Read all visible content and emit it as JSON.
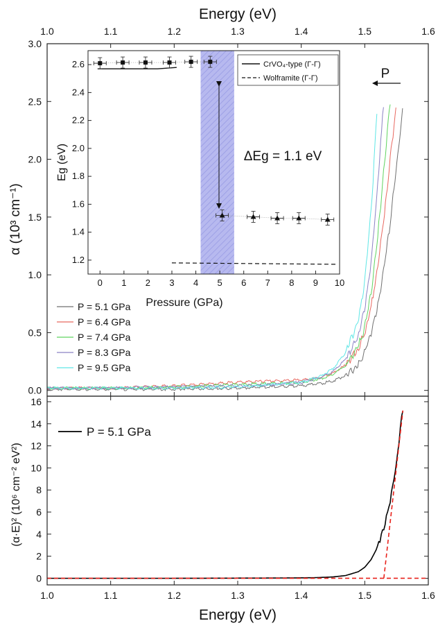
{
  "chart_data": [
    {
      "type": "line",
      "top_axis_title": "Energy (eV)",
      "xlim": [
        1.0,
        1.6
      ],
      "ylim": [
        -0.05,
        3.0
      ],
      "x_ticks": [
        1.0,
        1.1,
        1.2,
        1.3,
        1.4,
        1.5,
        1.6
      ],
      "y_ticks": [
        0.0,
        0.5,
        1.0,
        1.5,
        2.0,
        2.5,
        3.0
      ],
      "x_tick_labels": [
        "1.0",
        "1.1",
        "1.2",
        "1.3",
        "1.4",
        "1.5",
        "1.6"
      ],
      "y_tick_labels": [
        "0.0",
        "0.5",
        "1.0",
        "1.5",
        "2.0",
        "2.5",
        "3.0"
      ],
      "ylabel": "α (10³ cm⁻¹)",
      "legend_position": "bottom-left",
      "annotation_arrow_label": "P",
      "series": [
        {
          "name": "P = 5.1 GPa",
          "color": "#6f6f6f",
          "x": [
            1.0,
            1.1,
            1.2,
            1.3,
            1.35,
            1.4,
            1.43,
            1.45,
            1.47,
            1.49,
            1.5,
            1.51,
            1.52,
            1.53,
            1.54,
            1.55,
            1.56
          ],
          "y": [
            0.01,
            0.01,
            0.01,
            0.02,
            0.03,
            0.04,
            0.06,
            0.08,
            0.13,
            0.22,
            0.33,
            0.5,
            0.72,
            1.05,
            1.45,
            1.95,
            2.45
          ]
        },
        {
          "name": "P = 6.4 GPa",
          "color": "#e8675f",
          "x": [
            1.0,
            1.1,
            1.2,
            1.3,
            1.35,
            1.4,
            1.43,
            1.45,
            1.47,
            1.49,
            1.5,
            1.51,
            1.52,
            1.53,
            1.54,
            1.55
          ],
          "y": [
            0.02,
            0.02,
            0.04,
            0.07,
            0.08,
            0.09,
            0.11,
            0.15,
            0.22,
            0.36,
            0.5,
            0.72,
            1.05,
            1.5,
            2.0,
            2.5
          ]
        },
        {
          "name": "P = 7.4 GPa",
          "color": "#5fd35f",
          "x": [
            1.0,
            1.1,
            1.2,
            1.3,
            1.35,
            1.4,
            1.43,
            1.45,
            1.47,
            1.49,
            1.5,
            1.51,
            1.52,
            1.53,
            1.54
          ],
          "y": [
            0.02,
            0.02,
            0.03,
            0.05,
            0.06,
            0.07,
            0.1,
            0.14,
            0.22,
            0.38,
            0.55,
            0.85,
            1.3,
            1.9,
            2.5
          ]
        },
        {
          "name": "P = 8.3 GPa",
          "color": "#8b82c4",
          "x": [
            1.0,
            1.1,
            1.2,
            1.3,
            1.35,
            1.4,
            1.43,
            1.45,
            1.47,
            1.49,
            1.5,
            1.51,
            1.52,
            1.53
          ],
          "y": [
            0.02,
            0.02,
            0.03,
            0.04,
            0.05,
            0.07,
            0.11,
            0.16,
            0.27,
            0.48,
            0.72,
            1.1,
            1.75,
            2.5
          ]
        },
        {
          "name": "P = 9.5 GPa",
          "color": "#5ee6e6",
          "x": [
            1.0,
            1.1,
            1.2,
            1.3,
            1.35,
            1.4,
            1.43,
            1.45,
            1.47,
            1.49,
            1.5,
            1.51,
            1.52
          ],
          "y": [
            0.02,
            0.02,
            0.02,
            0.03,
            0.05,
            0.07,
            0.12,
            0.19,
            0.33,
            0.6,
            0.95,
            1.55,
            2.5
          ]
        }
      ]
    },
    {
      "type": "scatter",
      "role": "inset",
      "xlabel": "Pressure (GPa)",
      "ylabel": "Eg (eV)",
      "xlim": [
        -0.5,
        10.0
      ],
      "ylim": [
        1.1,
        2.7
      ],
      "x_ticks": [
        0,
        1,
        2,
        3,
        4,
        5,
        6,
        7,
        8,
        9,
        10
      ],
      "y_ticks": [
        1.2,
        1.4,
        1.6,
        1.8,
        2.0,
        2.2,
        2.4,
        2.6
      ],
      "x_tick_labels": [
        "0",
        "1",
        "2",
        "3",
        "4",
        "5",
        "6",
        "7",
        "8",
        "9",
        "10"
      ],
      "y_tick_labels": [
        "1.2",
        "1.4",
        "1.6",
        "1.8",
        "2.0",
        "2.2",
        "2.4",
        "2.6"
      ],
      "shaded_region_x": [
        4.2,
        5.6
      ],
      "annotation_text": "ΔEg = 1.1 eV",
      "legend_position": "top-right",
      "legend": [
        {
          "label": "CrVO₄-type (Γ-Γ)",
          "style": "solid"
        },
        {
          "label": "Wolframite (Γ-Γ)",
          "style": "dashed"
        }
      ],
      "series": [
        {
          "name": "squares",
          "marker": "square",
          "x": [
            0.0,
            0.95,
            1.9,
            2.9,
            3.8,
            4.6
          ],
          "y": [
            2.61,
            2.615,
            2.615,
            2.615,
            2.62,
            2.62
          ]
        },
        {
          "name": "triangles",
          "marker": "triangle",
          "x": [
            5.1,
            6.4,
            7.4,
            8.3,
            9.5
          ],
          "y": [
            1.52,
            1.51,
            1.5,
            1.5,
            1.49
          ]
        },
        {
          "name": "CrVO₄-type (Γ-Γ)",
          "style": "solid",
          "x": [
            -0.1,
            2.4,
            3.2
          ],
          "y": [
            2.57,
            2.57,
            2.58
          ]
        },
        {
          "name": "Wolframite (Γ-Γ)",
          "style": "dashed",
          "x": [
            3.0,
            9.9
          ],
          "y": [
            1.18,
            1.17
          ]
        }
      ]
    },
    {
      "type": "line",
      "xlabel": "Energy (eV)",
      "ylabel": "(α·E)² (10⁶ cm⁻² eV²)",
      "xlim": [
        1.0,
        1.6
      ],
      "ylim": [
        -0.6,
        16.5
      ],
      "x_ticks": [
        1.0,
        1.1,
        1.2,
        1.3,
        1.4,
        1.5,
        1.6
      ],
      "y_ticks": [
        0,
        2,
        4,
        6,
        8,
        10,
        12,
        14,
        16
      ],
      "x_tick_labels": [
        "1.0",
        "1.1",
        "1.2",
        "1.3",
        "1.4",
        "1.5",
        "1.6"
      ],
      "y_tick_labels": [
        "0",
        "2",
        "4",
        "6",
        "8",
        "10",
        "12",
        "14",
        "16"
      ],
      "legend_position": "top-left",
      "series": [
        {
          "name": "P = 5.1 GPa",
          "color": "#000000",
          "x": [
            1.0,
            1.2,
            1.35,
            1.42,
            1.45,
            1.47,
            1.49,
            1.5,
            1.51,
            1.52,
            1.53,
            1.54,
            1.545,
            1.55,
            1.555,
            1.56
          ],
          "y": [
            0.0,
            0.0,
            0.02,
            0.05,
            0.12,
            0.25,
            0.6,
            1.0,
            1.7,
            2.8,
            4.5,
            7.0,
            8.7,
            10.5,
            13.0,
            15.4
          ]
        },
        {
          "style": "dashed",
          "color": "#e8211b",
          "x": [
            1.0,
            1.6
          ],
          "y": [
            0.0,
            0.0
          ]
        },
        {
          "style": "dashed",
          "color": "#e8211b",
          "x": [
            1.53,
            1.56
          ],
          "y": [
            0.0,
            15.2
          ]
        }
      ]
    }
  ]
}
